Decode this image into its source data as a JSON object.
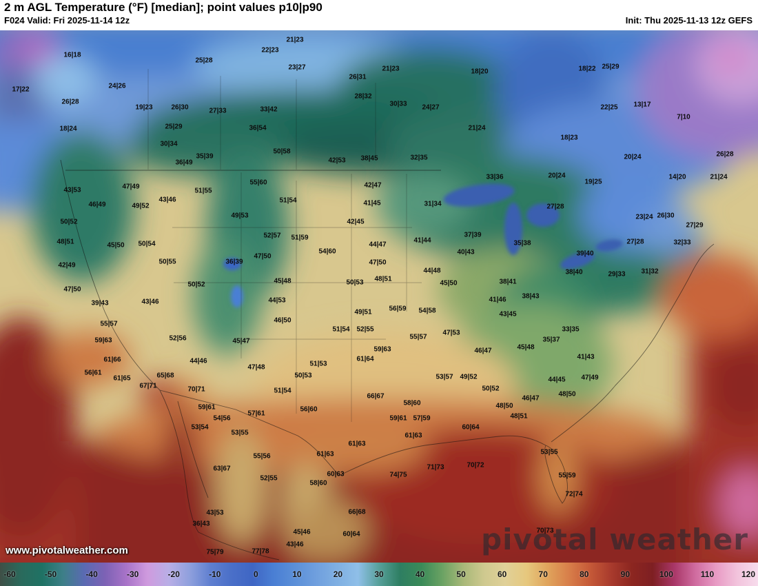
{
  "header": {
    "title": "2 m AGL Temperature (°F) [median]; point values p10|p90",
    "valid_label": "F024 Valid: Fri 2025-11-14 12z",
    "init_label": "Init: Thu 2025-11-13 12z GEFS"
  },
  "watermark": {
    "url": "www.pivotalweather.com",
    "brand": "pivotal weather"
  },
  "colorbar": {
    "unit": "°F",
    "min": -60,
    "max": 120,
    "ticks": [
      -60,
      -50,
      -40,
      -30,
      -20,
      -10,
      0,
      10,
      20,
      30,
      40,
      50,
      60,
      70,
      80,
      90,
      100,
      110,
      120
    ],
    "stops": [
      [
        -60,
        "#3f4f46"
      ],
      [
        -55,
        "#2a6a5c"
      ],
      [
        -50,
        "#1f7264"
      ],
      [
        -45,
        "#3d7f88"
      ],
      [
        -40,
        "#5a6ab2"
      ],
      [
        -35,
        "#7d62b5"
      ],
      [
        -30,
        "#a873c8"
      ],
      [
        -25,
        "#cf9ade"
      ],
      [
        -20,
        "#b9aee6"
      ],
      [
        -15,
        "#8fa0dd"
      ],
      [
        -10,
        "#5f7fd0"
      ],
      [
        -5,
        "#4a6fc8"
      ],
      [
        0,
        "#3f66c4"
      ],
      [
        5,
        "#4a7fd4"
      ],
      [
        10,
        "#5b8fd8"
      ],
      [
        15,
        "#6f9fde"
      ],
      [
        20,
        "#7fafe2"
      ],
      [
        25,
        "#8fbfe8"
      ],
      [
        30,
        "#57a09a"
      ],
      [
        35,
        "#2e7e62"
      ],
      [
        40,
        "#3a8a58"
      ],
      [
        45,
        "#6aa263"
      ],
      [
        50,
        "#a8b878"
      ],
      [
        55,
        "#cfc98f"
      ],
      [
        60,
        "#e0d098"
      ],
      [
        65,
        "#e6c87e"
      ],
      [
        70,
        "#e0a45c"
      ],
      [
        75,
        "#d87f4a"
      ],
      [
        80,
        "#c65a38"
      ],
      [
        85,
        "#a93b2d"
      ],
      [
        90,
        "#8c2620"
      ],
      [
        95,
        "#7e1f22"
      ],
      [
        100,
        "#a83666"
      ],
      [
        105,
        "#cf6a9e"
      ],
      [
        110,
        "#e89ac4"
      ],
      [
        115,
        "#f2c3dc"
      ],
      [
        120,
        "#f7dcec"
      ]
    ]
  },
  "map": {
    "point_values": [
      [
        105,
        80,
        "16|18"
      ],
      [
        296,
        88,
        "25|28"
      ],
      [
        392,
        73,
        "22|23"
      ],
      [
        428,
        58,
        "21|23"
      ],
      [
        431,
        98,
        "23|27"
      ],
      [
        519,
        112,
        "26|31"
      ],
      [
        567,
        100,
        "21|23"
      ],
      [
        696,
        104,
        "18|20"
      ],
      [
        852,
        100,
        "18|22"
      ],
      [
        886,
        97,
        "25|29"
      ],
      [
        30,
        130,
        "17|22"
      ],
      [
        170,
        125,
        "24|26"
      ],
      [
        102,
        148,
        "26|28"
      ],
      [
        209,
        156,
        "19|23"
      ],
      [
        261,
        156,
        "26|30"
      ],
      [
        316,
        161,
        "27|33"
      ],
      [
        390,
        159,
        "33|42"
      ],
      [
        527,
        140,
        "28|32"
      ],
      [
        578,
        151,
        "30|33"
      ],
      [
        625,
        156,
        "24|27"
      ],
      [
        884,
        156,
        "22|25"
      ],
      [
        932,
        152,
        "13|17"
      ],
      [
        992,
        170,
        "7|10"
      ],
      [
        99,
        187,
        "18|24"
      ],
      [
        252,
        184,
        "25|29"
      ],
      [
        374,
        186,
        "36|54"
      ],
      [
        692,
        186,
        "21|24"
      ],
      [
        826,
        200,
        "18|23"
      ],
      [
        245,
        209,
        "30|34"
      ],
      [
        409,
        220,
        "50|58"
      ],
      [
        608,
        229,
        "32|35"
      ],
      [
        918,
        228,
        "20|24"
      ],
      [
        1052,
        224,
        "26|28"
      ],
      [
        267,
        236,
        "36|49"
      ],
      [
        297,
        227,
        "35|39"
      ],
      [
        489,
        233,
        "42|53"
      ],
      [
        536,
        230,
        "38|45"
      ],
      [
        718,
        257,
        "33|36"
      ],
      [
        808,
        255,
        "20|24"
      ],
      [
        861,
        264,
        "19|25"
      ],
      [
        983,
        257,
        "14|20"
      ],
      [
        1043,
        257,
        "21|24"
      ],
      [
        105,
        276,
        "43|53"
      ],
      [
        190,
        271,
        "47|49"
      ],
      [
        295,
        277,
        "51|55"
      ],
      [
        375,
        265,
        "55|60"
      ],
      [
        541,
        269,
        "42|47"
      ],
      [
        141,
        297,
        "46|49"
      ],
      [
        204,
        299,
        "49|52"
      ],
      [
        243,
        290,
        "43|46"
      ],
      [
        418,
        291,
        "51|54"
      ],
      [
        540,
        295,
        "41|45"
      ],
      [
        628,
        296,
        "31|34"
      ],
      [
        806,
        300,
        "27|28"
      ],
      [
        935,
        315,
        "23|24"
      ],
      [
        966,
        313,
        "26|30"
      ],
      [
        1008,
        327,
        "27|29"
      ],
      [
        100,
        322,
        "50|52"
      ],
      [
        348,
        313,
        "49|53"
      ],
      [
        516,
        322,
        "42|45"
      ],
      [
        395,
        342,
        "52|57"
      ],
      [
        435,
        345,
        "51|59"
      ],
      [
        95,
        351,
        "48|51"
      ],
      [
        168,
        356,
        "45|50"
      ],
      [
        213,
        354,
        "50|54"
      ],
      [
        475,
        365,
        "54|60"
      ],
      [
        548,
        355,
        "44|47"
      ],
      [
        613,
        349,
        "41|44"
      ],
      [
        686,
        341,
        "37|39"
      ],
      [
        758,
        353,
        "35|38"
      ],
      [
        849,
        368,
        "39|40"
      ],
      [
        922,
        351,
        "27|28"
      ],
      [
        990,
        352,
        "32|33"
      ],
      [
        97,
        385,
        "42|49"
      ],
      [
        340,
        380,
        "36|39"
      ],
      [
        381,
        372,
        "47|50"
      ],
      [
        243,
        380,
        "50|55"
      ],
      [
        548,
        381,
        "47|50"
      ],
      [
        676,
        366,
        "40|43"
      ],
      [
        833,
        395,
        "38|40"
      ],
      [
        895,
        398,
        "29|33"
      ],
      [
        943,
        394,
        "31|32"
      ],
      [
        105,
        420,
        "47|50"
      ],
      [
        145,
        440,
        "39|43"
      ],
      [
        218,
        438,
        "43|46"
      ],
      [
        285,
        413,
        "50|52"
      ],
      [
        410,
        408,
        "45|48"
      ],
      [
        556,
        405,
        "48|51"
      ],
      [
        627,
        393,
        "44|48"
      ],
      [
        651,
        411,
        "45|50"
      ],
      [
        737,
        409,
        "38|41"
      ],
      [
        770,
        430,
        "38|43"
      ],
      [
        722,
        435,
        "41|46"
      ],
      [
        402,
        436,
        "44|53"
      ],
      [
        410,
        465,
        "46|50"
      ],
      [
        515,
        410,
        "50|53"
      ],
      [
        527,
        453,
        "49|51"
      ],
      [
        577,
        448,
        "56|59"
      ],
      [
        620,
        451,
        "54|58"
      ],
      [
        737,
        456,
        "43|45"
      ],
      [
        150,
        494,
        "59|63"
      ],
      [
        158,
        470,
        "55|57"
      ],
      [
        258,
        491,
        "52|56"
      ],
      [
        288,
        524,
        "44|46"
      ],
      [
        350,
        495,
        "45|47"
      ],
      [
        372,
        533,
        "47|48"
      ],
      [
        495,
        478,
        "51|54"
      ],
      [
        530,
        478,
        "52|55"
      ],
      [
        555,
        507,
        "59|63"
      ],
      [
        607,
        489,
        "55|57"
      ],
      [
        655,
        483,
        "47|53"
      ],
      [
        701,
        509,
        "46|47"
      ],
      [
        763,
        504,
        "45|48"
      ],
      [
        800,
        493,
        "35|37"
      ],
      [
        828,
        478,
        "33|35"
      ],
      [
        163,
        522,
        "61|66"
      ],
      [
        135,
        541,
        "56|61"
      ],
      [
        177,
        549,
        "61|65"
      ],
      [
        215,
        560,
        "67|71"
      ],
      [
        240,
        545,
        "65|68"
      ],
      [
        285,
        565,
        "70|71"
      ],
      [
        300,
        591,
        "59|61"
      ],
      [
        322,
        607,
        "54|56"
      ],
      [
        348,
        628,
        "53|55"
      ],
      [
        290,
        620,
        "53|54"
      ],
      [
        462,
        528,
        "51|53"
      ],
      [
        440,
        545,
        "50|53"
      ],
      [
        410,
        567,
        "51|54"
      ],
      [
        448,
        594,
        "56|60"
      ],
      [
        372,
        600,
        "57|61"
      ],
      [
        530,
        521,
        "61|64"
      ],
      [
        545,
        575,
        "66|67"
      ],
      [
        598,
        585,
        "58|60"
      ],
      [
        578,
        607,
        "59|61"
      ],
      [
        612,
        607,
        "57|59"
      ],
      [
        600,
        632,
        "61|63"
      ],
      [
        683,
        620,
        "60|64"
      ],
      [
        645,
        547,
        "53|57"
      ],
      [
        680,
        547,
        "49|52"
      ],
      [
        712,
        564,
        "50|52"
      ],
      [
        732,
        589,
        "48|50"
      ],
      [
        753,
        604,
        "48|51"
      ],
      [
        770,
        578,
        "46|47"
      ],
      [
        823,
        572,
        "48|50"
      ],
      [
        808,
        551,
        "44|45"
      ],
      [
        856,
        548,
        "47|49"
      ],
      [
        850,
        518,
        "41|43"
      ],
      [
        797,
        656,
        "53|55"
      ],
      [
        823,
        690,
        "55|59"
      ],
      [
        833,
        717,
        "72|74"
      ],
      [
        791,
        770,
        "70|73"
      ],
      [
        690,
        675,
        "70|72"
      ],
      [
        632,
        678,
        "71|73"
      ],
      [
        578,
        689,
        "74|75"
      ],
      [
        518,
        644,
        "61|63"
      ],
      [
        472,
        659,
        "61|63"
      ],
      [
        487,
        688,
        "60|63"
      ],
      [
        462,
        701,
        "58|60"
      ],
      [
        390,
        694,
        "52|55"
      ],
      [
        380,
        662,
        "55|56"
      ],
      [
        322,
        680,
        "63|67"
      ],
      [
        312,
        744,
        "43|53"
      ],
      [
        292,
        760,
        "36|43"
      ],
      [
        312,
        801,
        "75|79"
      ],
      [
        378,
        800,
        "77|78"
      ],
      [
        438,
        772,
        "45|46"
      ],
      [
        428,
        790,
        "43|46"
      ],
      [
        510,
        775,
        "60|64"
      ],
      [
        518,
        743,
        "66|68"
      ]
    ]
  }
}
